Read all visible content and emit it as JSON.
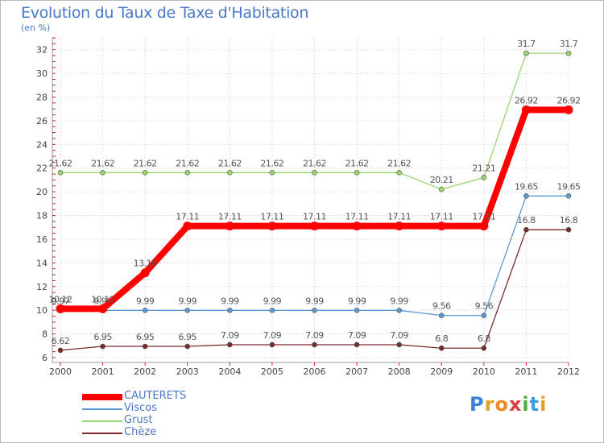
{
  "header": {
    "title": "Evolution du Taux de Taxe d'Habitation",
    "unit": "(en %)"
  },
  "logo": {
    "letters": [
      "P",
      "r",
      "o",
      "x",
      "i",
      "t",
      "i"
    ],
    "colors": [
      "#3b82d6",
      "#e8a020",
      "#f08a20",
      "#e04040",
      "#4fb040",
      "#3b9fd6",
      "#e8a020"
    ]
  },
  "chart_data": {
    "type": "line",
    "title": "Evolution du Taux de Taxe d'Habitation",
    "ylabel": "(en %)",
    "xlabel": "",
    "categories": [
      "2000",
      "2001",
      "2002",
      "2003",
      "2004",
      "2005",
      "2006",
      "2007",
      "2008",
      "2009",
      "2010",
      "2011",
      "2012"
    ],
    "ylim": [
      6,
      33
    ],
    "yticks": [
      6,
      8,
      10,
      12,
      14,
      16,
      18,
      20,
      22,
      24,
      26,
      28,
      30,
      32
    ],
    "series": [
      {
        "name": "Chèze",
        "color": "#7a2a2a",
        "values": [
          6.62,
          6.95,
          6.95,
          6.95,
          7.09,
          7.09,
          7.09,
          7.09,
          7.09,
          6.8,
          6.8,
          16.8,
          16.8
        ],
        "labels": [
          "6.62",
          "6.95",
          "6.95",
          "6.95",
          "7.09",
          "7.09",
          "7.09",
          "7.09",
          "7.09",
          "6.8",
          "6.8",
          "16.8",
          "16.8"
        ]
      },
      {
        "name": "Viscos",
        "color": "#5b9bd5",
        "values": [
          9.97,
          9.99,
          9.99,
          9.99,
          9.99,
          9.99,
          9.99,
          9.99,
          9.99,
          9.56,
          9.56,
          19.65,
          19.65
        ],
        "labels": [
          "9.97",
          "9.99",
          "9.99",
          "9.99",
          "9.99",
          "9.99",
          "9.99",
          "9.99",
          "9.99",
          "9.56",
          "9.56",
          "19.65",
          "19.65"
        ]
      },
      {
        "name": "Grust",
        "color": "#9ad56a",
        "values": [
          21.62,
          21.62,
          21.62,
          21.62,
          21.62,
          21.62,
          21.62,
          21.62,
          21.62,
          20.21,
          21.21,
          31.7,
          31.7
        ],
        "labels": [
          "21.62",
          "21.62",
          "21.62",
          "21.62",
          "21.62",
          "21.62",
          "21.62",
          "21.62",
          "21.62",
          "20.21",
          "21.21",
          "31.7",
          "31.7"
        ]
      },
      {
        "name": "CAUTERETS",
        "color": "#ff0000",
        "values": [
          10.12,
          10.12,
          13.16,
          17.11,
          17.11,
          17.11,
          17.11,
          17.11,
          17.11,
          17.11,
          17.11,
          26.92,
          26.92
        ],
        "labels": [
          "10.12",
          "10.12",
          "13.16",
          "17.11",
          "17.11",
          "17.11",
          "17.11",
          "17.11",
          "17.11",
          "17.11",
          "17.11",
          "26.92",
          "26.92"
        ]
      }
    ],
    "legend": {
      "position": "bottom-left",
      "order": [
        "CAUTERETS",
        "Viscos",
        "Grust",
        "Chèze"
      ]
    }
  }
}
